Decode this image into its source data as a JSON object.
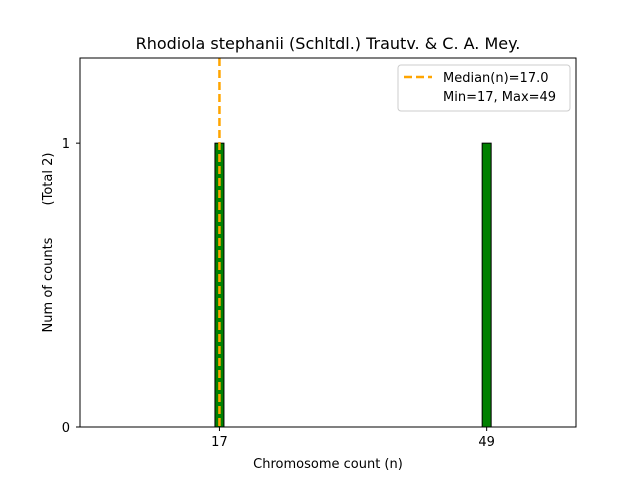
{
  "chart_data": {
    "type": "bar",
    "title": "Rhodiola stephanii (Schltdl.) Trautv. & C. A. Mey.",
    "xlabel": "Chromosome count (n)",
    "ylabel": "Num of counts",
    "ylabel_total": "(Total 2)",
    "x": [
      17,
      49
    ],
    "values": [
      1,
      1
    ],
    "xticks": [
      "17",
      "49"
    ],
    "yticks": [
      "0",
      "1"
    ],
    "xlim": [
      0.3,
      59.7
    ],
    "ylim": [
      0,
      1.3
    ],
    "bar_color": "#008000",
    "median": 17.0,
    "median_color": "#FFA500",
    "legend": {
      "position": "top-right",
      "median_label": "Median(n)=17.0",
      "range_label": "Min=17, Max=49"
    }
  }
}
